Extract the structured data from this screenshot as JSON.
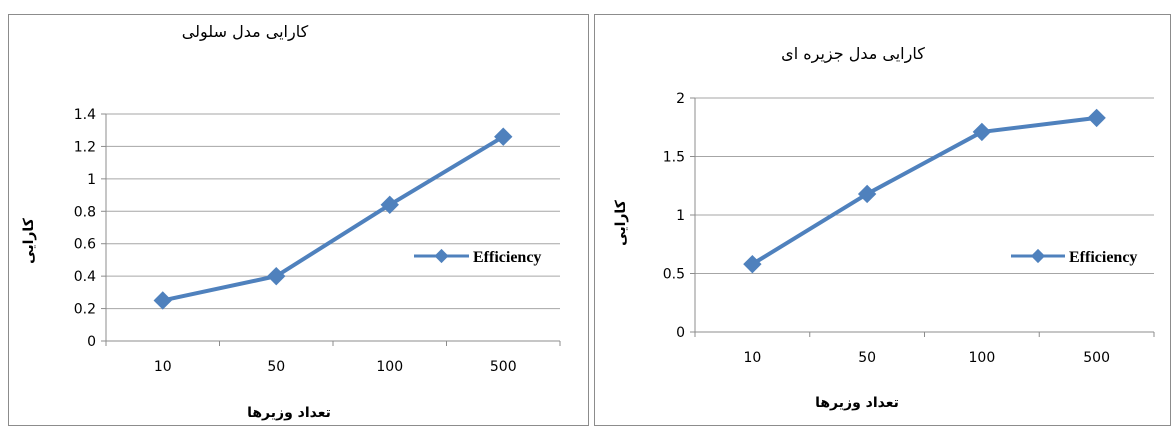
{
  "colors": {
    "series": "#4f81bd",
    "grid": "#a6a6a6",
    "axis": "#8c8c8c"
  },
  "chart_data": [
    {
      "type": "line",
      "title": "کارایی مدل سلولی",
      "xlabel": "تعداد وزیرها",
      "ylabel": "کارایی",
      "categories": [
        "10",
        "50",
        "100",
        "500"
      ],
      "series": [
        {
          "name": "Efficiency",
          "values": [
            0.25,
            0.4,
            0.84,
            1.26
          ]
        }
      ],
      "ylim": [
        0,
        1.4
      ],
      "yticks": [
        "0",
        "0.2",
        "0.4",
        "0.6",
        "0.8",
        "1",
        "1.2",
        "1.4"
      ],
      "grid": true,
      "legend": "right"
    },
    {
      "type": "line",
      "title": "کارایی مدل جزیره ای",
      "xlabel": "تعداد وزیرها",
      "ylabel": "کارایی",
      "categories": [
        "10",
        "50",
        "100",
        "500"
      ],
      "series": [
        {
          "name": "Efficiency",
          "values": [
            0.58,
            1.18,
            1.71,
            1.83
          ]
        }
      ],
      "ylim": [
        0,
        2
      ],
      "yticks": [
        "0",
        "0.5",
        "1",
        "1.5",
        "2"
      ],
      "grid": true,
      "legend": "right"
    }
  ]
}
